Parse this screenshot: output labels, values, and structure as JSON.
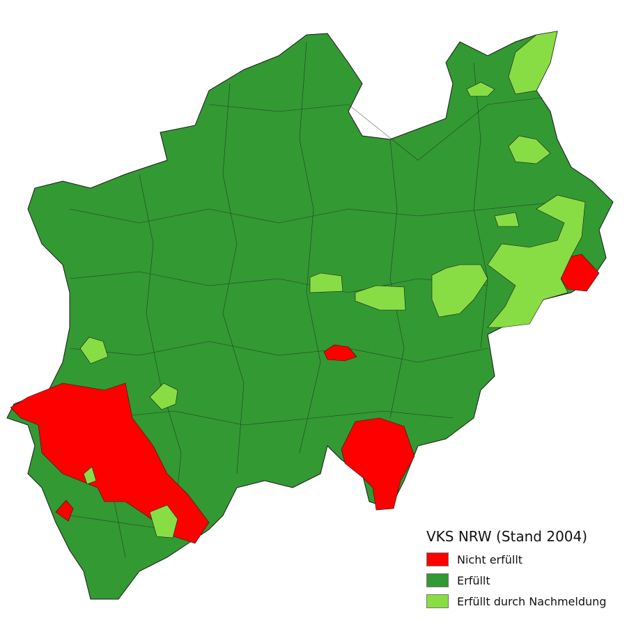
{
  "map": {
    "region": "Nordrhein-Westfalen",
    "legend": {
      "title": "VKS NRW (Stand 2004)",
      "items": [
        {
          "label": "Nicht erfüllt",
          "color": "#ff0000"
        },
        {
          "label": "Erfüllt",
          "color": "#339933"
        },
        {
          "label": "Erfüllt durch Nachmeldung",
          "color": "#88dd44"
        }
      ]
    },
    "border_color": "#1a1a1a"
  }
}
